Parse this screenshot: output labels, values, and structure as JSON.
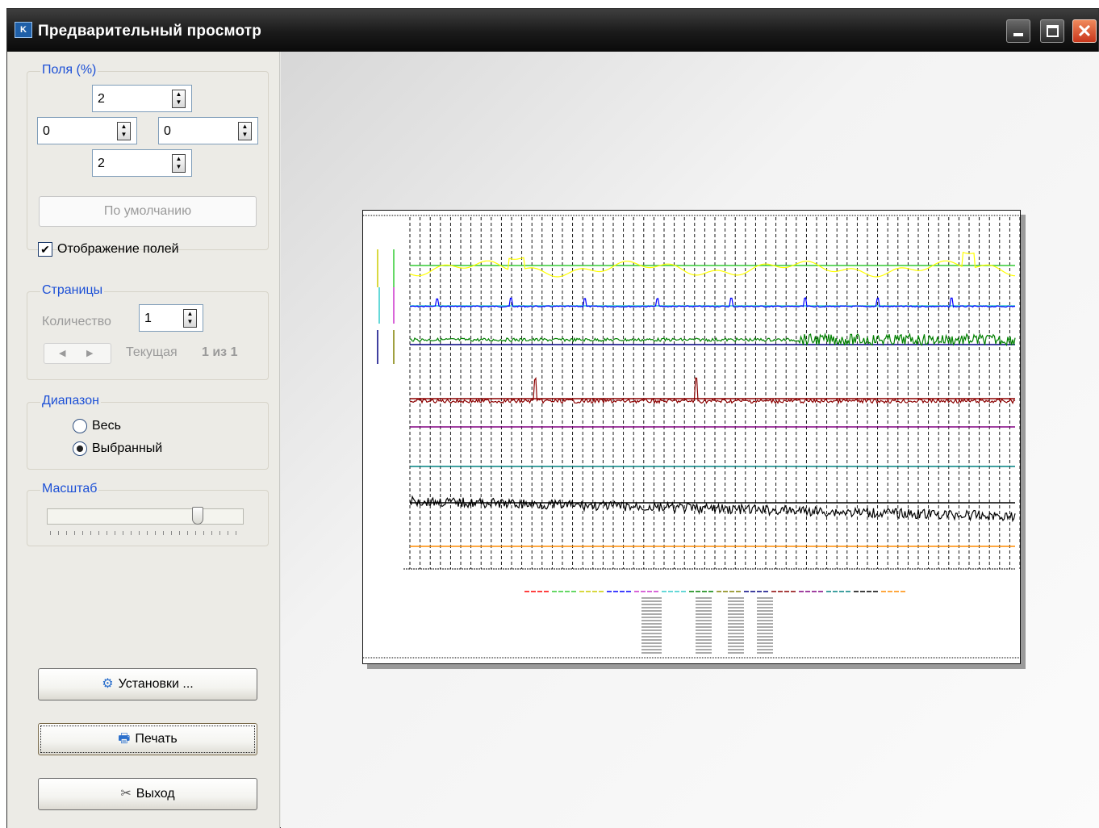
{
  "window": {
    "title": "Предварительный просмотр",
    "icon": "app-logo-icon",
    "min_icon": "minimize-icon",
    "max_icon": "maximize-icon",
    "close_icon": "close-icon"
  },
  "margins": {
    "title": "Поля (%)",
    "top": "2",
    "left": "0",
    "right": "0",
    "bottom": "2",
    "default_button": "По умолчанию",
    "show_label": "Отображение полей",
    "show_checked": true
  },
  "pages": {
    "title": "Страницы",
    "count_label": "Количество",
    "count": "1",
    "prev": "◀",
    "next": "▶",
    "current_label": "Текущая",
    "current_value": "1 из 1"
  },
  "range": {
    "title": "Диапазон",
    "all": "Весь",
    "selected": "Выбранный",
    "value": "selected"
  },
  "scale": {
    "title": "Масштаб",
    "value": 0.78
  },
  "buttons": {
    "settings": "Установки ...",
    "print": "Печать",
    "exit": "Выход"
  },
  "chart_data": {
    "type": "line",
    "series": [
      {
        "color": "#ffff00"
      },
      {
        "color": "#0000ff"
      },
      {
        "color": "#008000"
      },
      {
        "color": "#8b0000"
      },
      {
        "color": "#800080"
      },
      {
        "color": "#008080"
      },
      {
        "color": "#000000"
      },
      {
        "color": "#ff8c00"
      }
    ],
    "baseline_colors": [
      "#33cc33",
      "#33cccc",
      "#000080",
      "#8b0000",
      "#800080",
      "#008080",
      "#000000",
      "#ff8c00"
    ]
  }
}
